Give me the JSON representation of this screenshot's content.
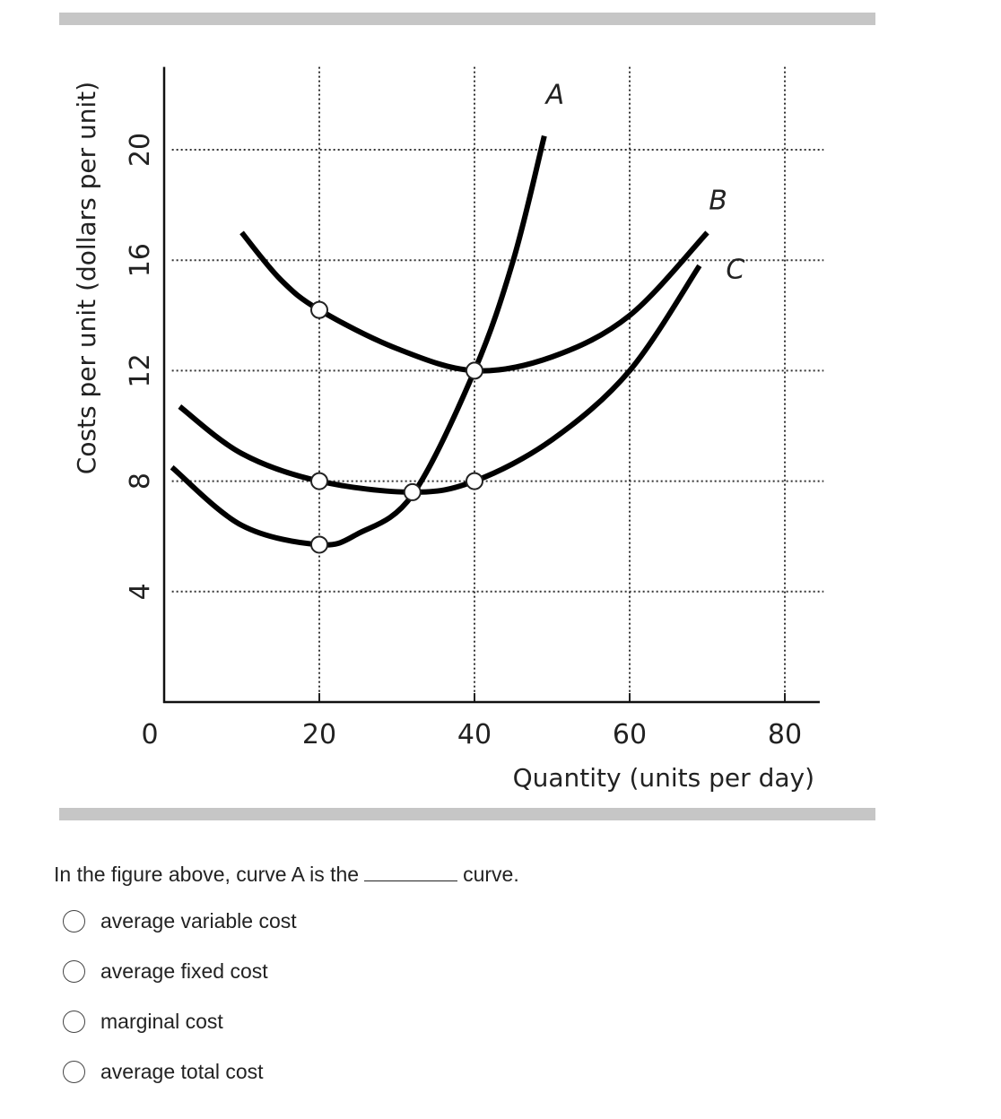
{
  "question": {
    "prefix": "In the figure above, curve A is the",
    "suffix": "curve."
  },
  "options": [
    {
      "label": "average variable cost"
    },
    {
      "label": "average fixed cost"
    },
    {
      "label": "marginal cost"
    },
    {
      "label": "average total cost"
    }
  ],
  "chart_data": {
    "type": "line",
    "xlabel": "Quantity (units per day)",
    "ylabel": "Costs per unit (dollars per unit)",
    "xlim": [
      0,
      85
    ],
    "ylim": [
      0,
      23
    ],
    "x_ticks": [
      "0",
      "20",
      "40",
      "60",
      "80"
    ],
    "y_ticks": [
      "4",
      "8",
      "12",
      "16",
      "20"
    ],
    "grid": "dotted",
    "series": [
      {
        "name": "A",
        "x": [
          1,
          10,
          20,
          25,
          32,
          40,
          45,
          49
        ],
        "y": [
          8.5,
          6.4,
          5.7,
          6.1,
          7.5,
          12,
          16,
          20.5
        ]
      },
      {
        "name": "B",
        "x": [
          10,
          15,
          20,
          30,
          40,
          50,
          60,
          70
        ],
        "y": [
          17,
          15.3,
          14.2,
          12.8,
          12,
          12.5,
          14,
          17
        ]
      },
      {
        "name": "C",
        "x": [
          2,
          10,
          20,
          32,
          40,
          50,
          60,
          69
        ],
        "y": [
          10.7,
          9,
          8,
          7.6,
          8,
          9.5,
          12,
          15.8
        ]
      }
    ],
    "points": [
      {
        "x": 20,
        "y": 14.2
      },
      {
        "x": 40,
        "y": 12
      },
      {
        "x": 20,
        "y": 8
      },
      {
        "x": 32,
        "y": 7.6
      },
      {
        "x": 40,
        "y": 8
      },
      {
        "x": 20,
        "y": 5.7
      }
    ]
  }
}
